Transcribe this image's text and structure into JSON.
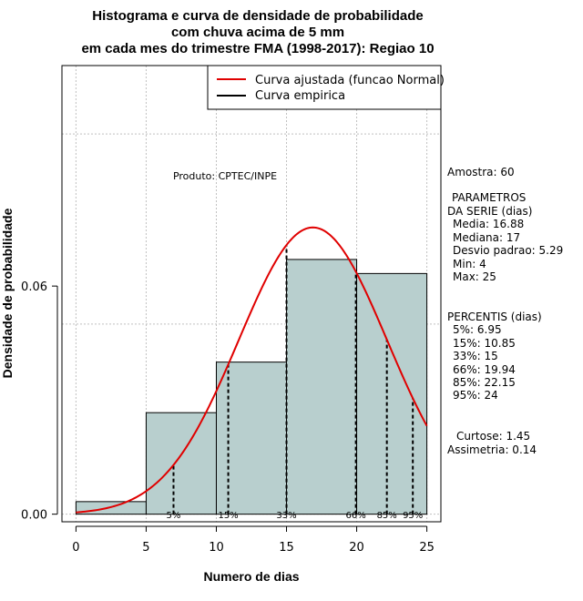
{
  "chart_data": {
    "type": "bar",
    "title_lines": [
      "Histograma e curva de densidade de probabilidade",
      "com chuva acima de 5 mm",
      "em cada mes do trimestre FMA (1998-2017): Regiao 10"
    ],
    "xlabel": "Numero de dias",
    "ylabel": "Densidade de probabilidade",
    "xlim": [
      -1,
      26
    ],
    "ylim": [
      -0.002,
      0.118
    ],
    "x_ticks": [
      0,
      5,
      10,
      15,
      20,
      25
    ],
    "x_tick_labels": [
      "0",
      "5",
      "10",
      "15",
      "20",
      "25"
    ],
    "y_ticks": [
      0.0,
      0.06
    ],
    "y_tick_labels": [
      "0.00",
      "0.06"
    ],
    "grid_y": [
      0.0,
      0.05,
      0.1
    ],
    "bins": [
      {
        "from": 0,
        "to": 5,
        "density": 0.0033
      },
      {
        "from": 5,
        "to": 10,
        "density": 0.0267
      },
      {
        "from": 10,
        "to": 15,
        "density": 0.04
      },
      {
        "from": 15,
        "to": 20,
        "density": 0.067
      },
      {
        "from": 20,
        "to": 25,
        "density": 0.0633
      }
    ],
    "fitted_curve": {
      "name": "Curva ajustada (funcao Normal)",
      "distribution": "normal",
      "mean": 16.88,
      "sd": 5.29,
      "x_range": [
        0,
        25
      ],
      "color": "#e00000"
    },
    "empirical_curve": {
      "name": "Curva empirica",
      "color": "#000000"
    },
    "percentile_lines": [
      {
        "label": "5%",
        "x": 6.95
      },
      {
        "label": "15%",
        "x": 10.85
      },
      {
        "label": "33%",
        "x": 15
      },
      {
        "label": "66%",
        "x": 19.94
      },
      {
        "label": "85%",
        "x": 22.15
      },
      {
        "label": "95%",
        "x": 24
      }
    ],
    "product_label": "Produto: CPTEC/INPE",
    "legend_position": "top-right",
    "colors": {
      "bar_fill": "#b8cfce",
      "bar_stroke": "#000000",
      "grid": "#c0c0c0"
    }
  },
  "side_panel": {
    "sample": "Amostra: 60",
    "params_header_1": "PARAMETROS",
    "params_header_2": "DA SERIE (dias)",
    "params": [
      "Media: 16.88",
      "Mediana: 17",
      "Desvio padrao: 5.29",
      "Min: 4",
      "Max: 25"
    ],
    "percentis_header": "PERCENTIS (dias)",
    "percentis": [
      "5%: 6.95",
      "15%: 10.85",
      "33%: 15",
      "66%: 19.94",
      "85%: 22.15",
      "95%: 24"
    ],
    "curtose": "Curtose: 1.45",
    "assimetria": "Assimetria: 0.14"
  }
}
